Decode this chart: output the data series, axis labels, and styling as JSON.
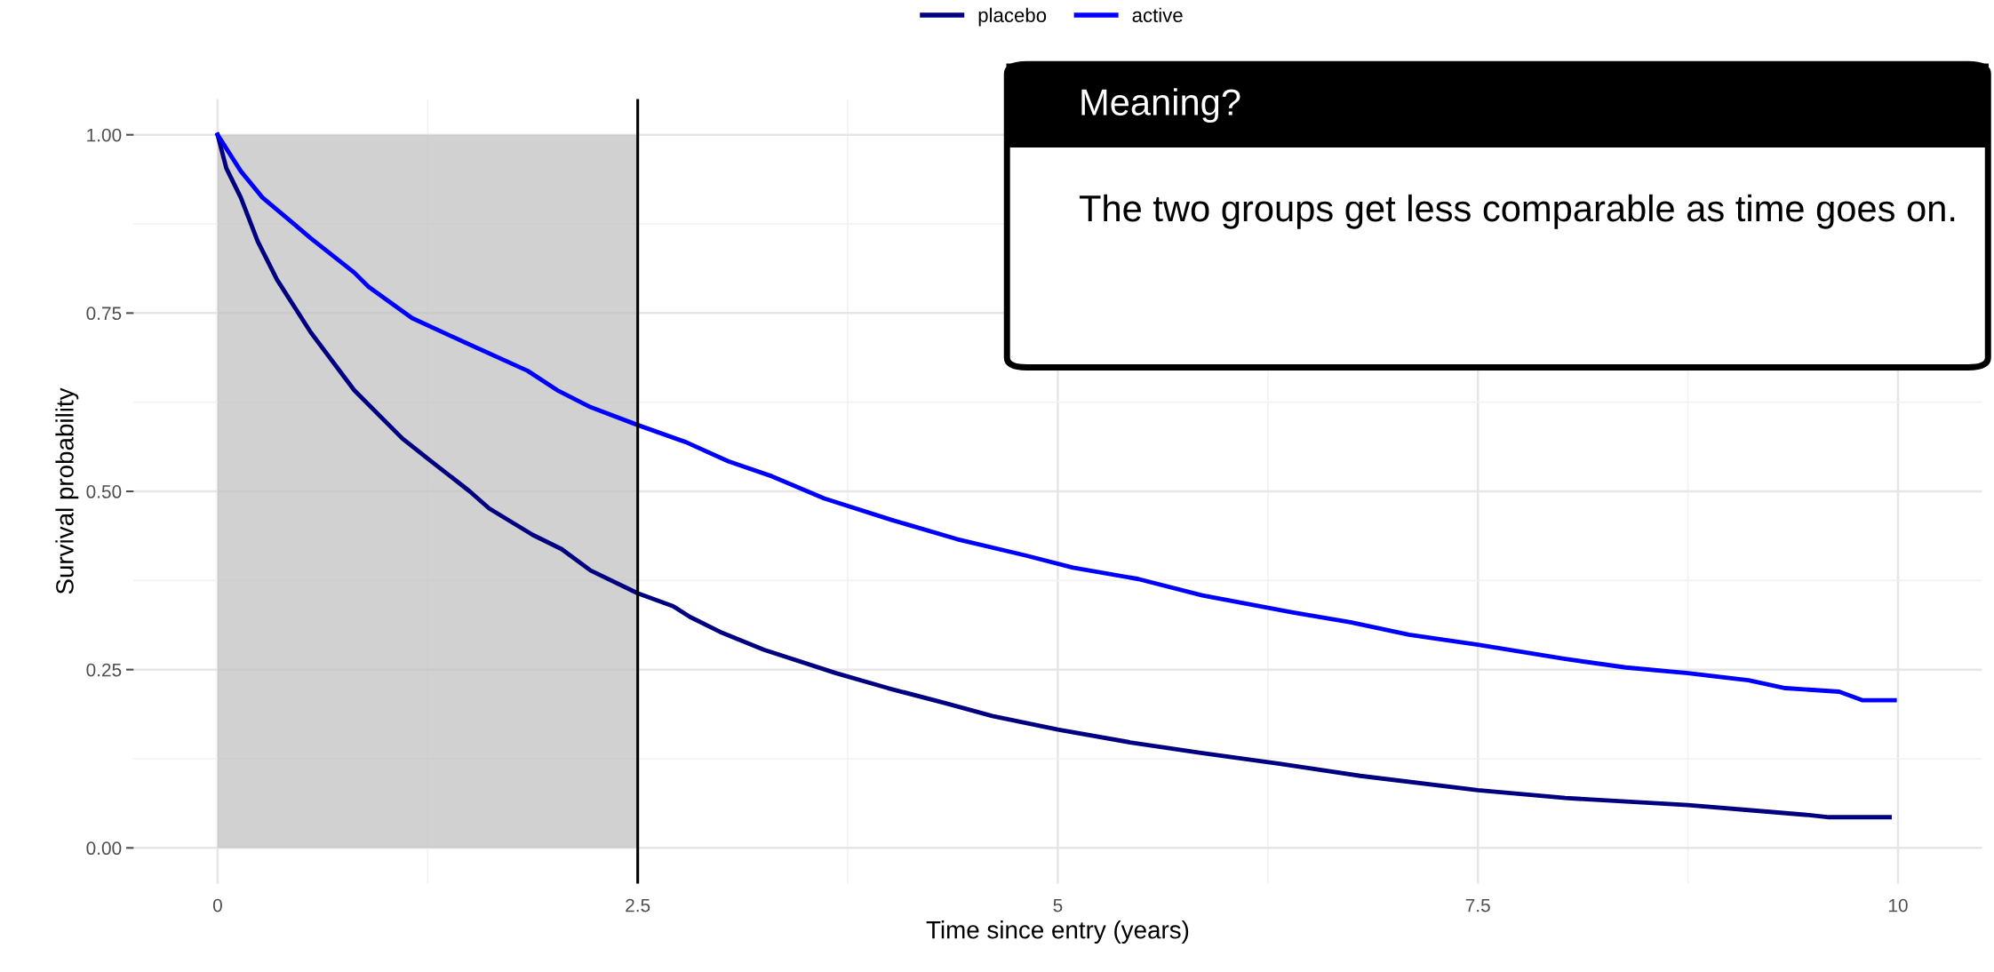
{
  "chart_data": {
    "type": "line",
    "xlabel": "Time since entry (years)",
    "ylabel": "Survival probability",
    "xlim": [
      -0.5,
      10.5
    ],
    "ylim": [
      -0.05,
      1.05
    ],
    "xticks": [
      0,
      2.5,
      5,
      7.5,
      10
    ],
    "yticks": [
      {
        "value": 0,
        "label": "0.00"
      },
      {
        "value": 0.25,
        "label": "0.25"
      },
      {
        "value": 0.5,
        "label": "0.50"
      },
      {
        "value": 0.75,
        "label": "0.75"
      },
      {
        "value": 1,
        "label": "1.00"
      }
    ],
    "grid": true,
    "legend": "top",
    "line_style": "solid",
    "marker": "none",
    "series": [
      {
        "name": "placebo",
        "color": "#000080",
        "x": [
          0,
          0.052,
          0.138,
          0.238,
          0.353,
          0.554,
          0.812,
          1.1,
          1.245,
          1.5,
          1.616,
          1.875,
          2.047,
          2.22,
          2.5,
          2.71,
          2.81,
          2.99,
          3.25,
          3.68,
          3.99,
          4.33,
          4.61,
          5.0,
          5.43,
          5.86,
          6.32,
          6.8,
          7.5,
          8.02,
          8.75,
          9.11,
          9.47,
          9.59,
          9.95
        ],
        "values": [
          1.0,
          0.953,
          0.912,
          0.851,
          0.797,
          0.723,
          0.642,
          0.574,
          0.547,
          0.5,
          0.476,
          0.439,
          0.419,
          0.389,
          0.357,
          0.339,
          0.324,
          0.303,
          0.278,
          0.245,
          0.224,
          0.203,
          0.185,
          0.166,
          0.148,
          0.133,
          0.118,
          0.101,
          0.081,
          0.07,
          0.06,
          0.053,
          0.046,
          0.043,
          0.043
        ]
      },
      {
        "name": "active",
        "color": "#0000ff",
        "x": [
          0,
          0.138,
          0.267,
          0.439,
          0.554,
          0.812,
          0.898,
          1.157,
          1.47,
          1.845,
          2.02,
          2.22,
          2.5,
          2.787,
          3.04,
          3.3,
          3.61,
          4.01,
          4.4,
          4.81,
          5.09,
          5.48,
          5.86,
          6.4,
          6.75,
          7.09,
          7.5,
          8.02,
          8.38,
          8.75,
          9.11,
          9.33,
          9.65,
          9.79,
          9.98
        ],
        "values": [
          1.0,
          0.949,
          0.912,
          0.878,
          0.855,
          0.807,
          0.787,
          0.743,
          0.709,
          0.669,
          0.642,
          0.618,
          0.593,
          0.569,
          0.542,
          0.521,
          0.49,
          0.46,
          0.433,
          0.41,
          0.393,
          0.377,
          0.354,
          0.33,
          0.316,
          0.299,
          0.285,
          0.265,
          0.253,
          0.245,
          0.235,
          0.224,
          0.219,
          0.207,
          0.207
        ]
      }
    ],
    "bands": [
      {
        "axis": "x",
        "from": 0,
        "to": 2.5,
        "color": "#bebebe"
      }
    ],
    "ref_lines": [
      {
        "axis": "x",
        "value": 2.5,
        "color": "#000000",
        "line_style": "solid"
      }
    ],
    "annotations": [
      "Meaning?",
      "The two groups get less comparable as time goes on."
    ]
  }
}
